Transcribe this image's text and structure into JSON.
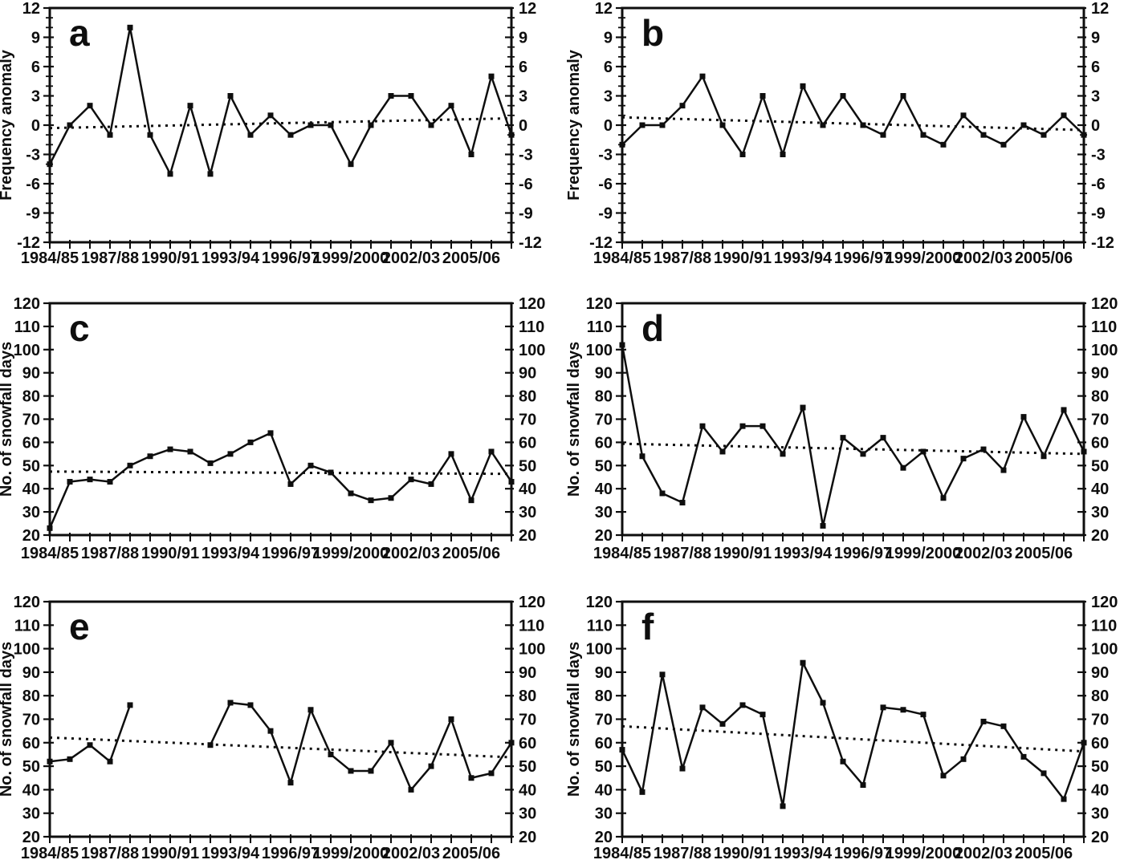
{
  "figure": {
    "background": "#ffffff",
    "ink_color": "#0e0e0e",
    "points_per_series": 24,
    "x_tick_labels": [
      "1984/85",
      "1987/88",
      "1990/91",
      "1993/94",
      "1996/97",
      "1999/2000",
      "2002/03",
      "2005/06"
    ],
    "x_labeled_indices": [
      0,
      3,
      6,
      9,
      12,
      15,
      18,
      21
    ]
  },
  "chart_data": [
    {
      "id": "a",
      "type": "line",
      "panel_label": "a",
      "ylabel": "Frequency anomaly",
      "ylim": [
        -12,
        12
      ],
      "ytick_major": 3,
      "ytick_minor": 1,
      "x_tick_labels": [
        "1984/85",
        "1987/88",
        "1990/91",
        "1993/94",
        "1996/97",
        "1999/2000",
        "2002/03",
        "2005/06"
      ],
      "values": [
        -4,
        0,
        2,
        -1,
        10,
        -1,
        -5,
        2,
        -5,
        3,
        -1,
        1,
        -1,
        0,
        0,
        -4,
        0,
        3,
        3,
        0,
        2,
        -3,
        5,
        -1
      ],
      "trend_line": {
        "style": "dotted",
        "start": -0.3,
        "end": 0.7
      },
      "marker": "filled-square",
      "grid": false
    },
    {
      "id": "b",
      "type": "line",
      "panel_label": "b",
      "ylabel": "Frequency anomaly",
      "ylim": [
        -12,
        12
      ],
      "ytick_major": 3,
      "ytick_minor": 1,
      "x_tick_labels": [
        "1984/85",
        "1987/88",
        "1990/91",
        "1993/94",
        "1996/97",
        "1999/2000",
        "2002/03",
        "2005/06"
      ],
      "values": [
        -2,
        0,
        0,
        2,
        5,
        0,
        -3,
        3,
        -3,
        4,
        0,
        3,
        0,
        -1,
        3,
        -1,
        -2,
        1,
        -1,
        -2,
        0,
        -1,
        1,
        -1
      ],
      "trend_line": {
        "style": "dotted",
        "start": 0.8,
        "end": -0.5
      },
      "marker": "filled-square",
      "grid": false
    },
    {
      "id": "c",
      "type": "line",
      "panel_label": "c",
      "ylabel": "No. of snowfall days",
      "ylim": [
        20,
        120
      ],
      "ytick_major": 10,
      "ytick_minor": null,
      "x_tick_labels": [
        "1984/85",
        "1987/88",
        "1990/91",
        "1993/94",
        "1996/97",
        "1999/2000",
        "2002/03",
        "2005/06"
      ],
      "values": [
        23,
        43,
        44,
        43,
        50,
        54,
        57,
        56,
        51,
        55,
        60,
        64,
        42,
        50,
        47,
        38,
        35,
        36,
        44,
        42,
        55,
        35,
        56,
        43
      ],
      "trend_line": {
        "style": "dotted",
        "start": 47.4,
        "end": 46.4
      },
      "marker": "filled-square",
      "grid": false
    },
    {
      "id": "d",
      "type": "line",
      "panel_label": "d",
      "ylabel": "No. of snowfall days",
      "ylim": [
        20,
        120
      ],
      "ytick_major": 10,
      "ytick_minor": null,
      "x_tick_labels": [
        "1984/85",
        "1987/88",
        "1990/91",
        "1993/94",
        "1996/97",
        "1999/2000",
        "2002/03",
        "2005/06"
      ],
      "values": [
        102,
        54,
        38,
        34,
        67,
        56,
        67,
        67,
        55,
        75,
        24,
        62,
        55,
        62,
        49,
        56,
        36,
        53,
        57,
        48,
        71,
        54,
        74,
        56
      ],
      "trend_line": {
        "style": "dotted",
        "start": 59.4,
        "end": 55.0
      },
      "marker": "filled-square",
      "grid": false
    },
    {
      "id": "e",
      "type": "line",
      "panel_label": "e",
      "ylabel": "No. of snowfall days",
      "ylim": [
        20,
        120
      ],
      "ytick_major": 10,
      "ytick_minor": null,
      "x_tick_labels": [
        "1984/85",
        "1987/88",
        "1990/91",
        "1993/94",
        "1996/97",
        "1999/2000",
        "2002/03",
        "2005/06"
      ],
      "values": [
        52,
        53,
        59,
        52,
        76,
        null,
        null,
        null,
        59,
        77,
        76,
        65,
        43,
        74,
        55,
        48,
        48,
        60,
        40,
        50,
        70,
        45,
        47,
        60
      ],
      "trend_line": {
        "style": "dotted",
        "start": 62.2,
        "end": 53.8
      },
      "marker": "filled-square",
      "grid": false
    },
    {
      "id": "f",
      "type": "line",
      "panel_label": "f",
      "ylabel": "No. of snowfall days",
      "ylim": [
        20,
        120
      ],
      "ytick_major": 10,
      "ytick_minor": null,
      "x_tick_labels": [
        "1984/85",
        "1987/88",
        "1990/91",
        "1993/94",
        "1996/97",
        "1999/2000",
        "2002/03",
        "2005/06"
      ],
      "values": [
        57,
        39,
        89,
        49,
        75,
        68,
        76,
        72,
        33,
        94,
        77,
        52,
        42,
        75,
        74,
        72,
        46,
        53,
        69,
        67,
        54,
        47,
        36,
        60
      ],
      "trend_line": {
        "style": "dotted",
        "start": 67.0,
        "end": 56.3
      },
      "marker": "filled-square",
      "grid": false
    }
  ]
}
